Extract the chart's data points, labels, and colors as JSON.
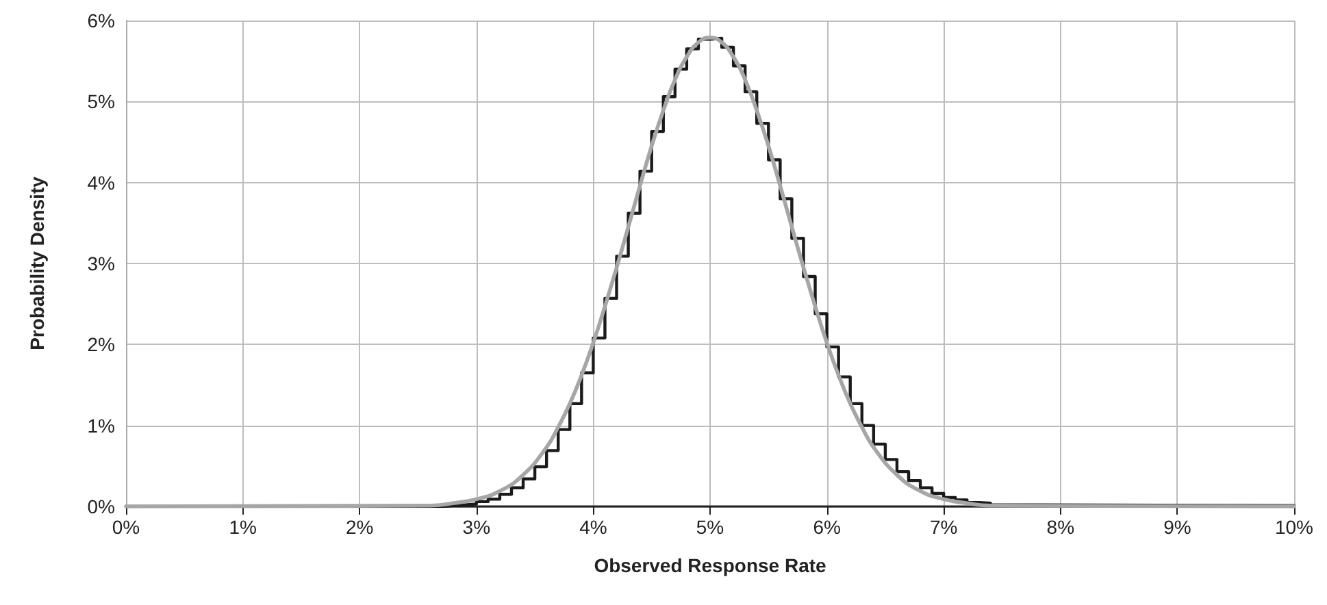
{
  "chart_data": {
    "type": "line",
    "xlabel": "Observed Response Rate",
    "ylabel": "Probability Density",
    "grid": true,
    "marker": "none",
    "line_style": "solid",
    "xlim": [
      0,
      10
    ],
    "xticks": [
      {
        "value": 0,
        "label": "0%"
      },
      {
        "value": 1,
        "label": "1%"
      },
      {
        "value": 2,
        "label": "2%"
      },
      {
        "value": 3,
        "label": "3%"
      },
      {
        "value": 4,
        "label": "4%"
      },
      {
        "value": 5,
        "label": "5%"
      },
      {
        "value": 6,
        "label": "6%"
      },
      {
        "value": 7,
        "label": "7%"
      },
      {
        "value": 8,
        "label": "8%"
      },
      {
        "value": 9,
        "label": "9%"
      },
      {
        "value": 10,
        "label": "10%"
      }
    ],
    "ylim": [
      0,
      6
    ],
    "yticks": [
      {
        "value": 0,
        "label": "0%"
      },
      {
        "value": 1,
        "label": "1%"
      },
      {
        "value": 2,
        "label": "2%"
      },
      {
        "value": 3,
        "label": "3%"
      },
      {
        "value": 4,
        "label": "4%"
      },
      {
        "value": 5,
        "label": "5%"
      },
      {
        "value": 6,
        "label": "6%"
      }
    ],
    "series": [
      {
        "type": "step",
        "color": "#1a1a1a",
        "x": [
          0,
          2.7,
          2.8,
          2.9,
          3.0,
          3.1,
          3.2,
          3.3,
          3.4,
          3.5,
          3.6,
          3.7,
          3.8,
          3.9,
          4.0,
          4.1,
          4.2,
          4.3,
          4.4,
          4.5,
          4.6,
          4.7,
          4.8,
          4.9,
          5.0,
          5.1,
          5.2,
          5.3,
          5.4,
          5.5,
          5.6,
          5.7,
          5.8,
          5.9,
          6.0,
          6.1,
          6.2,
          6.3,
          6.4,
          6.5,
          6.6,
          6.7,
          6.8,
          6.9,
          7.0,
          7.1,
          7.2,
          7.3,
          7.4,
          7.5,
          7.6,
          10
        ],
        "values": [
          0,
          0.01,
          0.02,
          0.03,
          0.06,
          0.09,
          0.15,
          0.23,
          0.34,
          0.49,
          0.69,
          0.95,
          1.27,
          1.65,
          2.08,
          2.57,
          3.09,
          3.62,
          4.14,
          4.63,
          5.06,
          5.4,
          5.65,
          5.77,
          5.78,
          5.67,
          5.44,
          5.12,
          4.73,
          4.28,
          3.8,
          3.31,
          2.84,
          2.38,
          1.97,
          1.6,
          1.27,
          1,
          0.77,
          0.58,
          0.43,
          0.32,
          0.23,
          0.16,
          0.11,
          0.08,
          0.05,
          0.04,
          0.02,
          0.02,
          0.01,
          0
        ]
      },
      {
        "type": "line",
        "color": "#a6a6a6",
        "x": [
          0,
          2.6,
          2.8,
          3.0,
          3.2,
          3.4,
          3.6,
          3.7,
          3.8,
          3.9,
          4.0,
          4.1,
          4.2,
          4.3,
          4.4,
          4.5,
          4.6,
          4.7,
          4.8,
          4.9,
          5.0,
          5.1,
          5.2,
          5.3,
          5.4,
          5.5,
          5.6,
          5.7,
          5.8,
          5.9,
          6.0,
          6.1,
          6.2,
          6.3,
          6.4,
          6.6,
          6.8,
          7.0,
          7.2,
          7.4,
          10
        ],
        "values": [
          0,
          0.01,
          0.04,
          0.09,
          0.19,
          0.39,
          0.73,
          0.98,
          1.27,
          1.62,
          2.02,
          2.47,
          2.95,
          3.45,
          3.96,
          4.45,
          4.89,
          5.27,
          5.55,
          5.73,
          5.79,
          5.73,
          5.55,
          5.27,
          4.89,
          4.45,
          3.96,
          3.45,
          2.95,
          2.47,
          2.02,
          1.62,
          1.27,
          0.98,
          0.73,
          0.39,
          0.19,
          0.09,
          0.04,
          0.01,
          0
        ]
      }
    ]
  }
}
